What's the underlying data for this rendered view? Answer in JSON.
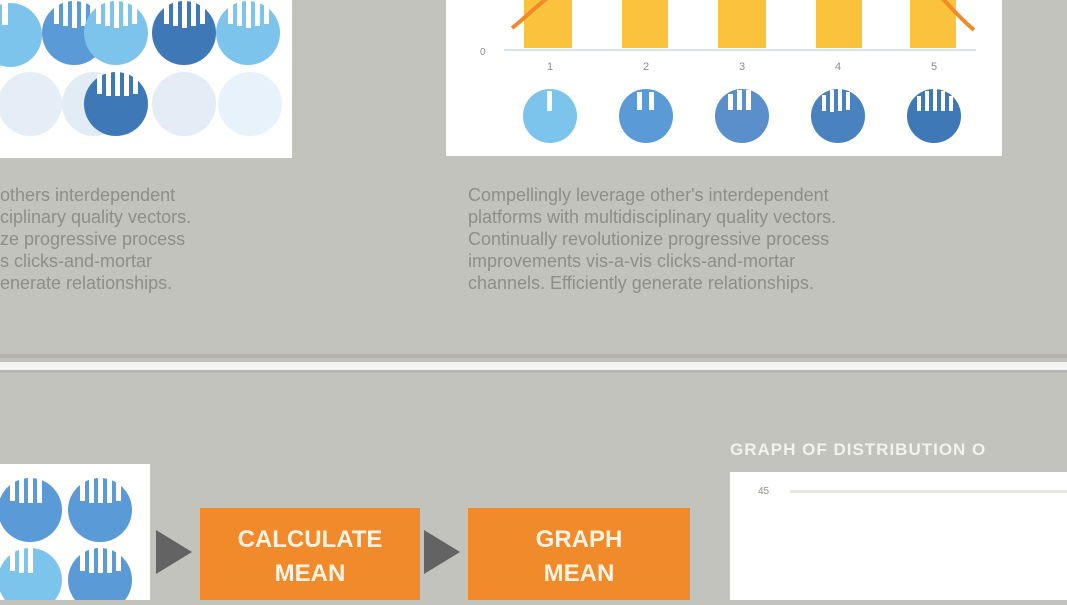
{
  "top_chart": {
    "y_tick": "0",
    "x_labels": [
      "1",
      "2",
      "3",
      "4",
      "5"
    ]
  },
  "descriptions": {
    "left": "others interdependent\nciplinary quality vectors.\nze progressive process\ns clicks-and-mortar\nenerate relationships.",
    "right": "Compellingly leverage other's interdependent\nplatforms with multidisciplinary quality vectors.\nContinually revolutionize progressive process\nimprovements vis-a-vis clicks-and-mortar\nchannels. Efficiently generate relationships."
  },
  "process": {
    "calculate_mean": "CALCULATE\nMEAN",
    "graph_mean": "GRAPH\nMEAN"
  },
  "graph": {
    "title": "GRAPH OF DISTRIBUTION O",
    "tick": "45"
  },
  "colors": {
    "orange": "#f08a2a",
    "yellow": "#fbc23b",
    "blue_light": "#7cc4ec",
    "blue_mid": "#5a9ad6",
    "blue_dark": "#3f78b7",
    "gray_bg": "#c3c3bd"
  },
  "icons": [
    "person-token-icon",
    "arrow-right-icon",
    "bell-curve-icon"
  ]
}
